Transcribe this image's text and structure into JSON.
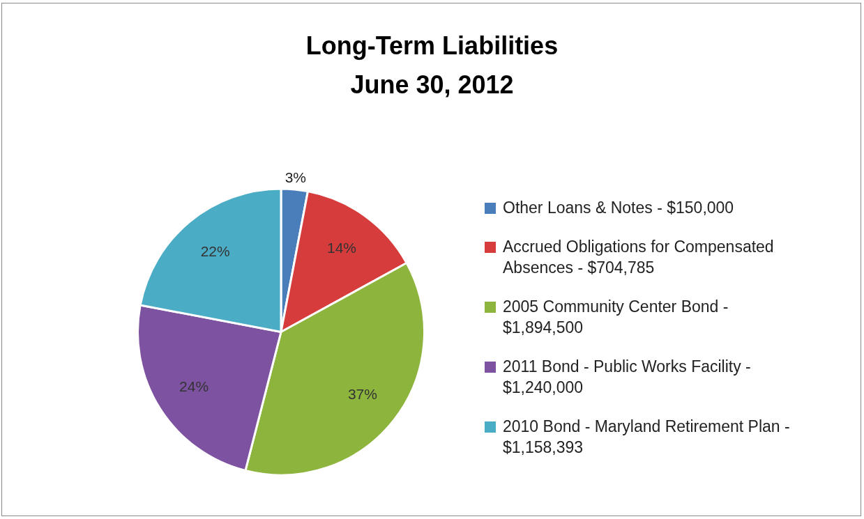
{
  "chart_data": {
    "type": "pie",
    "title": "Long-Term Liabilities",
    "subtitle": "June 30, 2012",
    "categories": [
      "Other Loans & Notes - $150,000",
      "Accrued Obligations for Compensated Absences - $704,785",
      "2005 Community Center Bond - $1,894,500",
      "2011 Bond - Public Works Facility - $1,240,000",
      "2010 Bond - Maryland Retirement Plan - $1,158,393"
    ],
    "values": [
      3,
      14,
      37,
      24,
      22
    ],
    "colors": [
      "#4a7ebb",
      "#d63c3c",
      "#8db43c",
      "#7d52a0",
      "#4bacc6"
    ],
    "value_labels": [
      "3%",
      "14%",
      "37%",
      "24%",
      "22%"
    ],
    "legend": "right"
  }
}
